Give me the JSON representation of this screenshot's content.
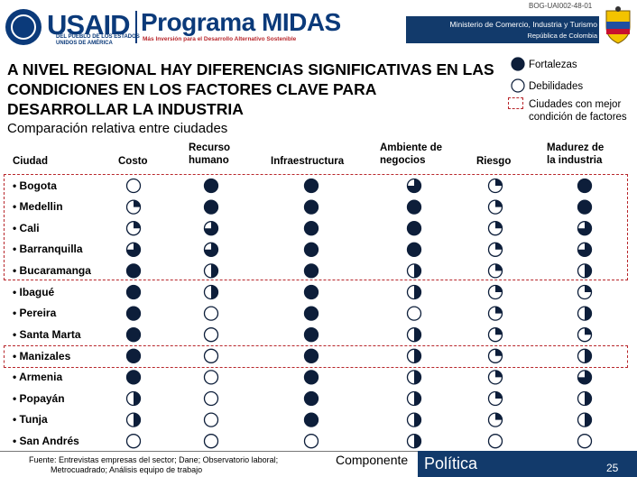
{
  "header": {
    "doc_code": "BOG-UAI002-48-01",
    "usaid_word": "USAID",
    "usaid_sub1": "DEL PUEBLO DE LOS ESTADOS",
    "usaid_sub2": "UNIDOS DE AMÉRICA",
    "program_name": "Programa MIDAS",
    "program_tagline": "Más Inversión para el Desarrollo Alternativo Sostenible",
    "ministry": "Ministerio de Comercio, Industria y Turismo",
    "republic": "República de Colombia"
  },
  "title": "A NIVEL REGIONAL HAY DIFERENCIAS SIGNIFICATIVAS EN LAS CONDICIONES EN LOS FACTORES CLAVE PARA DESARROLLAR LA INDUSTRIA",
  "subtitle": "Comparación relativa entre ciudades",
  "legend": {
    "fortalezas": "Fortalezas",
    "debilidades": "Debilidades",
    "ciudades_line1": "Ciudades con mejor",
    "ciudades_line2": "condición de factores"
  },
  "columns": {
    "ciudad": "Ciudad",
    "costo": "Costo",
    "recurso_l1": "Recurso",
    "recurso_l2": "humano",
    "infra": "Infraestructura",
    "ambiente_l1": "Ambiente de",
    "ambiente_l2": "negocios",
    "riesgo": "Riesgo",
    "madurez_l1": "Madurez de",
    "madurez_l2": "la industria"
  },
  "rows": [
    {
      "city": "Bogota",
      "ratings": [
        0.0,
        1.0,
        1.0,
        0.75,
        0.25,
        1.0
      ]
    },
    {
      "city": "Medellin",
      "ratings": [
        0.25,
        1.0,
        1.0,
        1.0,
        0.25,
        1.0
      ]
    },
    {
      "city": "Cali",
      "ratings": [
        0.25,
        0.75,
        1.0,
        1.0,
        0.25,
        0.75
      ]
    },
    {
      "city": "Barranquilla",
      "ratings": [
        0.75,
        0.75,
        1.0,
        1.0,
        0.25,
        0.75
      ]
    },
    {
      "city": "Bucaramanga",
      "ratings": [
        1.0,
        0.5,
        1.0,
        0.5,
        0.25,
        0.5
      ]
    },
    {
      "city": "Ibagué",
      "ratings": [
        1.0,
        0.5,
        1.0,
        0.5,
        0.25,
        0.25
      ]
    },
    {
      "city": "Pereira",
      "ratings": [
        1.0,
        0.0,
        1.0,
        0.0,
        0.25,
        0.5
      ]
    },
    {
      "city": "Santa Marta",
      "ratings": [
        1.0,
        0.0,
        1.0,
        0.5,
        0.25,
        0.25
      ]
    },
    {
      "city": "Manizales",
      "ratings": [
        1.0,
        0.0,
        1.0,
        0.5,
        0.25,
        0.5
      ]
    },
    {
      "city": "Armenia",
      "ratings": [
        1.0,
        0.0,
        1.0,
        0.5,
        0.25,
        0.75
      ]
    },
    {
      "city": "Popayán",
      "ratings": [
        0.5,
        0.0,
        1.0,
        0.5,
        0.25,
        0.5
      ]
    },
    {
      "city": "Tunja",
      "ratings": [
        0.5,
        0.0,
        1.0,
        0.5,
        0.25,
        0.5
      ]
    },
    {
      "city": "San Andrés",
      "ratings": [
        0.0,
        0.0,
        0.0,
        0.5,
        0.0,
        0.0
      ]
    }
  ],
  "highlighted_rows": [
    "Bogota",
    "Medellin",
    "Cali",
    "Barranquilla",
    "Bucaramanga",
    "Manizales"
  ],
  "footer": {
    "source_l1": "Fuente: Entrevistas empresas del sector; Dane; Observatorio laboral;",
    "source_l2": "Metrocuadrado; Análisis equipo de trabajo",
    "componente": "Componente",
    "politica": "Política",
    "page": "25"
  },
  "colors": {
    "navy": "#123a6b",
    "red_dash": "#b8262b",
    "usaid_blue": "#0b3a7a",
    "ball_fill": "#0d1e3a"
  }
}
